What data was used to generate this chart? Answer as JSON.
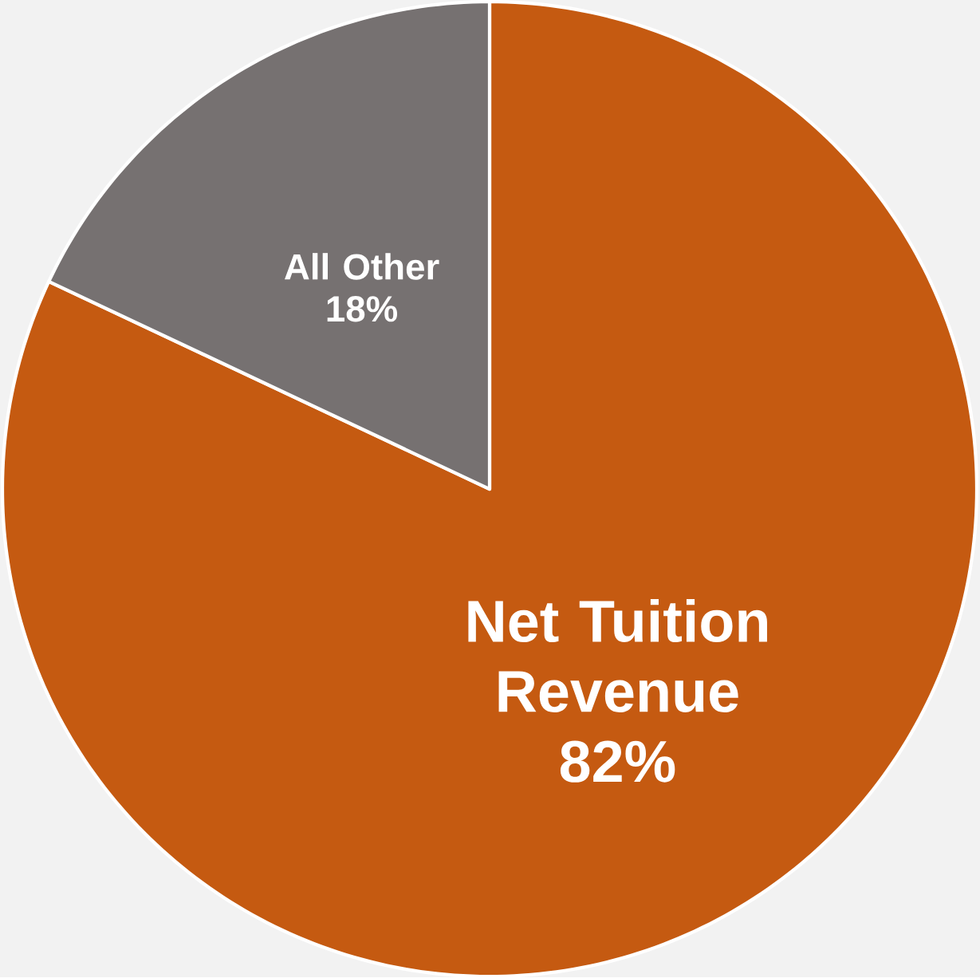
{
  "chart_data": {
    "type": "pie",
    "categories": [
      "Net Tuition Revenue",
      "All Other"
    ],
    "values": [
      82,
      18
    ],
    "colors": [
      "#c55a11",
      "#767171"
    ],
    "value_labels": [
      "82%",
      "18%"
    ]
  }
}
